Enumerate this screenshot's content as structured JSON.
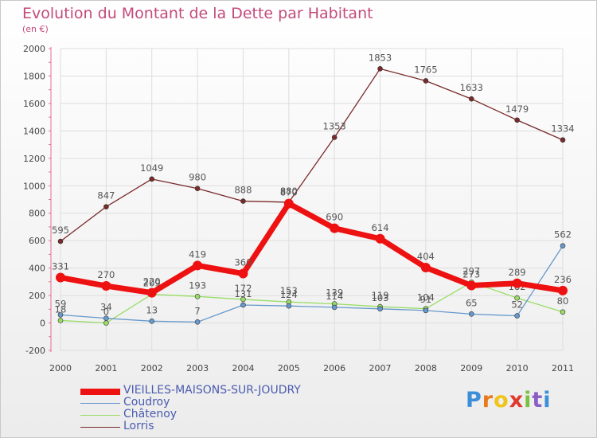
{
  "title": "Evolution du Montant de la Dette par Habitant",
  "subtitle": "(en €)",
  "chart_data": {
    "type": "line",
    "title": "Evolution du Montant de la Dette par Habitant",
    "ylabel": "(en €)",
    "xlabel": "",
    "ylim": [
      -200,
      2000
    ],
    "y_ticks": [
      -200,
      0,
      200,
      400,
      600,
      800,
      1000,
      1200,
      1400,
      1600,
      1800,
      2000
    ],
    "categories": [
      "2000",
      "2001",
      "2002",
      "2003",
      "2004",
      "2005",
      "2006",
      "2007",
      "2008",
      "2009",
      "2010",
      "2011"
    ],
    "grid": true,
    "legend_position": "bottom-left",
    "series": [
      {
        "name": "Lorris",
        "color": "#7a2a2a",
        "values": [
          595,
          847,
          1049,
          980,
          888,
          880,
          1353,
          1853,
          1765,
          1633,
          1479,
          1334
        ]
      },
      {
        "name": "Châtenoy",
        "color": "#99dd66",
        "values": [
          18,
          0,
          209,
          193,
          172,
          153,
          139,
          119,
          104,
          297,
          182,
          80
        ]
      },
      {
        "name": "Coudroy",
        "color": "#6699cc",
        "values": [
          59,
          34,
          13,
          7,
          131,
          124,
          114,
          103,
          91,
          65,
          52,
          562
        ]
      },
      {
        "name": "VIEILLES-MAISONS-SUR-JOUDRY",
        "color": "#ee1111",
        "values": [
          331,
          270,
          220,
          419,
          360,
          870,
          690,
          614,
          404,
          273,
          289,
          236
        ]
      }
    ]
  },
  "legend": {
    "items": [
      {
        "label": "VIEILLES-MAISONS-SUR-JOUDRY",
        "color": "#ee1111"
      },
      {
        "label": "Coudroy",
        "color": "#6699cc"
      },
      {
        "label": "Châtenoy",
        "color": "#99dd66"
      },
      {
        "label": "Lorris",
        "color": "#7a2a2a"
      }
    ]
  },
  "logo": {
    "letters": [
      "P",
      "r",
      "o",
      "x",
      "i",
      "t",
      "i"
    ],
    "colors": [
      "#3b8ed8",
      "#e87a1c",
      "#f0c419",
      "#e03a2e",
      "#7ac142",
      "#8a5ec4",
      "#3b8ed8"
    ]
  }
}
